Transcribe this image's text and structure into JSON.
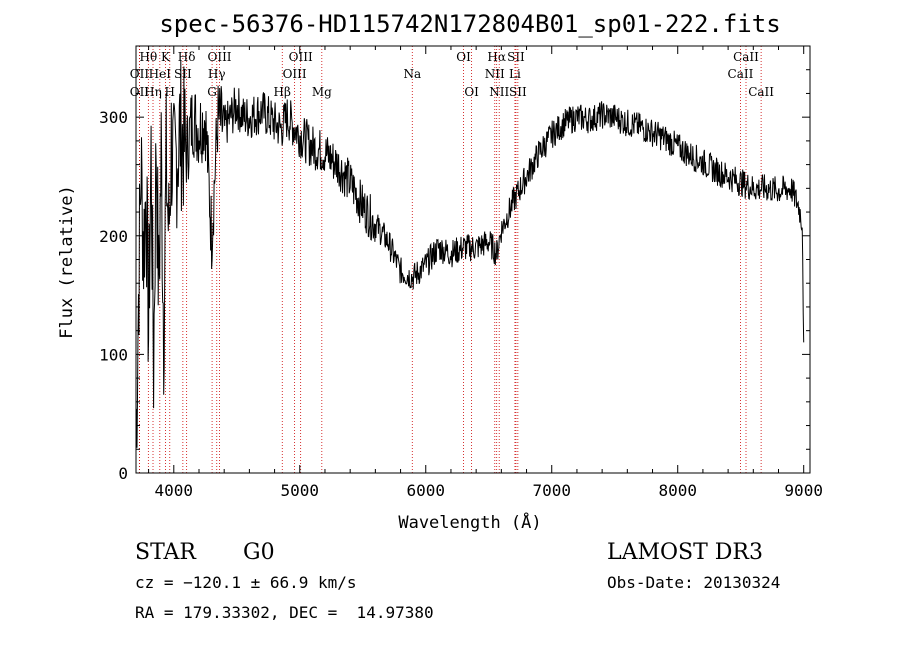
{
  "chart_data": {
    "type": "line",
    "title": "spec-56376-HD115742N172804B01_sp01-222.fits",
    "xlabel": "Wavelength (Å)",
    "ylabel": "Flux (relative)",
    "xlim": [
      3700,
      9050
    ],
    "ylim": [
      0,
      360
    ],
    "xticks": [
      4000,
      5000,
      6000,
      7000,
      8000,
      9000
    ],
    "yticks": [
      0,
      100,
      200,
      300
    ],
    "grid": false,
    "legend": "none",
    "noise_amplitude": 12,
    "series": [
      {
        "name": "flux",
        "x": [
          3700,
          3720,
          3740,
          3760,
          3780,
          3800,
          3820,
          3840,
          3860,
          3880,
          3900,
          3920,
          3940,
          3960,
          3980,
          4000,
          4050,
          4100,
          4150,
          4200,
          4250,
          4300,
          4350,
          4400,
          4450,
          4500,
          4550,
          4600,
          4700,
          4800,
          4850,
          4900,
          5000,
          5100,
          5200,
          5300,
          5400,
          5500,
          5600,
          5700,
          5800,
          5900,
          6000,
          6100,
          6200,
          6300,
          6400,
          6500,
          6563,
          6600,
          6700,
          6800,
          6900,
          7000,
          7100,
          7200,
          7300,
          7400,
          7500,
          7600,
          7700,
          7800,
          7900,
          8000,
          8100,
          8200,
          8300,
          8400,
          8500,
          8600,
          8700,
          8800,
          8900,
          8960,
          8990,
          9000
        ],
        "y": [
          20,
          150,
          260,
          190,
          240,
          120,
          270,
          90,
          280,
          150,
          270,
          120,
          260,
          200,
          280,
          250,
          290,
          270,
          300,
          290,
          300,
          200,
          300,
          290,
          300,
          310,
          300,
          300,
          305,
          295,
          290,
          300,
          285,
          275,
          270,
          260,
          245,
          225,
          210,
          195,
          170,
          165,
          175,
          190,
          185,
          190,
          190,
          195,
          185,
          205,
          230,
          250,
          270,
          285,
          295,
          300,
          298,
          302,
          300,
          295,
          292,
          287,
          282,
          275,
          268,
          262,
          255,
          250,
          245,
          240,
          240,
          238,
          240,
          225,
          210,
          100
        ]
      }
    ],
    "lines": [
      {
        "label": "Hθ",
        "wl": 3798,
        "row": 0
      },
      {
        "label": "K",
        "wl": 3934,
        "row": 0
      },
      {
        "label": "Hδ",
        "wl": 4102,
        "row": 0
      },
      {
        "label": "OIII",
        "wl": 4363,
        "row": 0
      },
      {
        "label": "OIII",
        "wl": 5007,
        "row": 0
      },
      {
        "label": "OI",
        "wl": 6300,
        "row": 0
      },
      {
        "label": "Hα",
        "wl": 6563,
        "row": 0
      },
      {
        "label": "SII",
        "wl": 6716,
        "row": 0
      },
      {
        "label": "CaII",
        "wl": 8542,
        "row": 0
      },
      {
        "label": "OII",
        "wl": 3727,
        "row": 1
      },
      {
        "label": "HeI",
        "wl": 3889,
        "row": 1
      },
      {
        "label": "SII",
        "wl": 4072,
        "row": 1
      },
      {
        "label": "Hγ",
        "wl": 4341,
        "row": 1
      },
      {
        "label": "OIII",
        "wl": 4959,
        "row": 1
      },
      {
        "label": "Na",
        "wl": 5893,
        "row": 1
      },
      {
        "label": "NII",
        "wl": 6548,
        "row": 1
      },
      {
        "label": "Li",
        "wl": 6708,
        "row": 1
      },
      {
        "label": "CaII",
        "wl": 8498,
        "row": 1
      },
      {
        "label": "OII",
        "wl": 3727,
        "row": 2
      },
      {
        "label": "Hη",
        "wl": 3835,
        "row": 2
      },
      {
        "label": "H",
        "wl": 3968,
        "row": 2
      },
      {
        "label": "G",
        "wl": 4304,
        "row": 2
      },
      {
        "label": "Hβ",
        "wl": 4861,
        "row": 2
      },
      {
        "label": "Mg",
        "wl": 5175,
        "row": 2
      },
      {
        "label": "OI",
        "wl": 6364,
        "row": 2
      },
      {
        "label": "NII",
        "wl": 6583,
        "row": 2
      },
      {
        "label": "SII",
        "wl": 6731,
        "row": 2
      },
      {
        "label": "CaII",
        "wl": 8662,
        "row": 2
      }
    ]
  },
  "info": {
    "class": "STAR",
    "subclass": "G0",
    "survey": "LAMOST DR3",
    "cz": "cz = −120.1 ± 66.9 km/s",
    "obs_date": "Obs-Date: 20130324",
    "radec": "RA = 179.33302, DEC =  14.97380"
  }
}
